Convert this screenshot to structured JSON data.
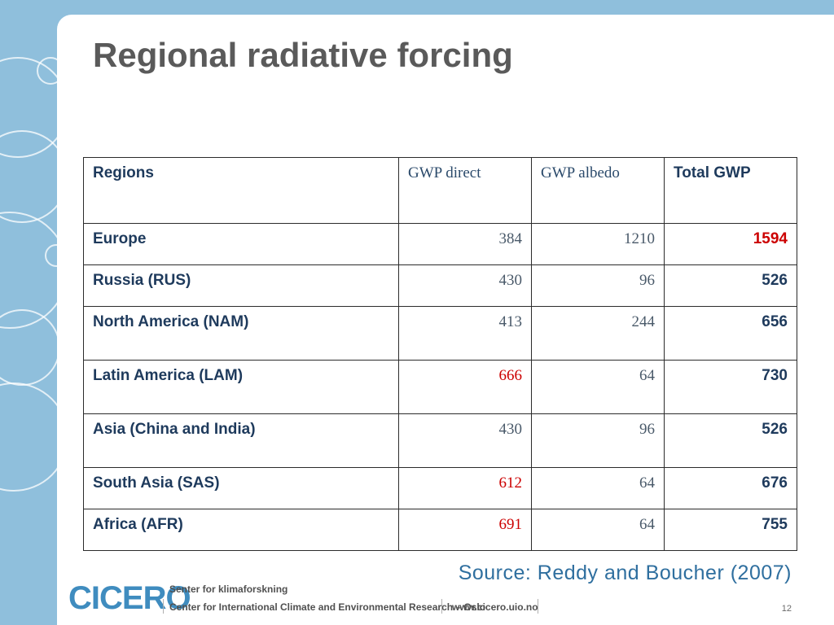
{
  "slide": {
    "title": "Regional radiative forcing",
    "source": "Source: Reddy and Boucher (2007)",
    "page_number": "12"
  },
  "table": {
    "headers": [
      "Regions",
      "GWP direct",
      "GWP albedo",
      "Total GWP"
    ],
    "rows": [
      {
        "region": "Europe",
        "direct": "384",
        "albedo": "1210",
        "total": "1594"
      },
      {
        "region": "Russia (RUS)",
        "direct": "430",
        "albedo": "96",
        "total": "526"
      },
      {
        "region": "North America (NAM)",
        "direct": "413",
        "albedo": "244",
        "total": "656"
      },
      {
        "region": "Latin America (LAM)",
        "direct": "666",
        "albedo": "64",
        "total": "730"
      },
      {
        "region": "Asia (China and India)",
        "direct": "430",
        "albedo": "96",
        "total": "526"
      },
      {
        "region": "South Asia (SAS)",
        "direct": "612",
        "albedo": "64",
        "total": "676"
      },
      {
        "region": "Africa (AFR)",
        "direct": "691",
        "albedo": "64",
        "total": "755"
      }
    ]
  },
  "footer": {
    "logo": "CICERO",
    "line1": "Senter for klimaforskning",
    "line2": "Center for International Climate and Environmental Research – Oslo",
    "url": "www.cicero.uio.no"
  },
  "colors": {
    "background": "#8fbfdc",
    "highlight_red": "#cc0000",
    "source_blue": "#2f6f9f"
  }
}
